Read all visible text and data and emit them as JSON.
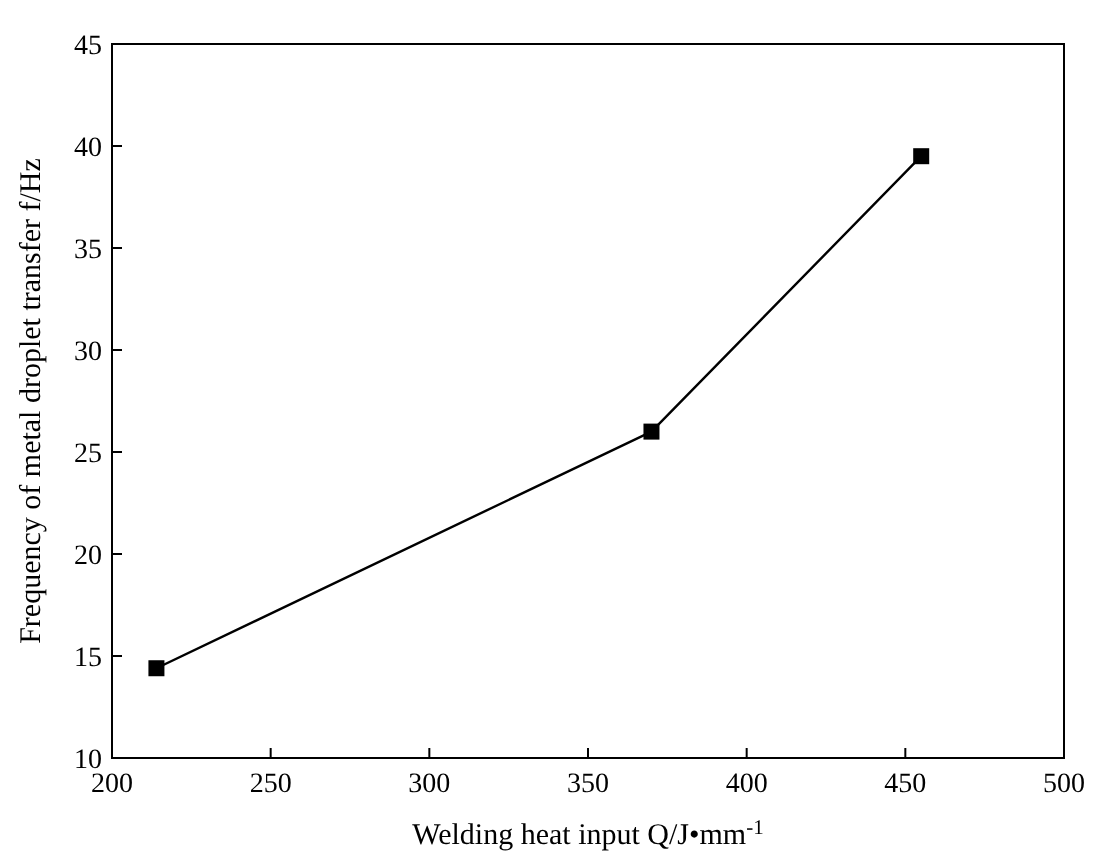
{
  "chart_data": {
    "type": "line",
    "xlabel": "Welding heat input Q/J•mm$^{-1}$",
    "ylabel": "Frequency of metal droplet transfer f/Hz",
    "x": [
      214,
      370,
      455
    ],
    "series": [
      {
        "color": "#000000",
        "values": [
          14.4,
          26,
          39.5
        ]
      }
    ],
    "xlim": [
      200,
      500
    ],
    "xticks": [
      200,
      250,
      300,
      350,
      400,
      450,
      500
    ],
    "ylim": [
      10,
      45
    ],
    "yticks": [
      10,
      15,
      20,
      25,
      30,
      35,
      40,
      45
    ],
    "marker": "square",
    "line_style": "solid",
    "grid": false
  }
}
